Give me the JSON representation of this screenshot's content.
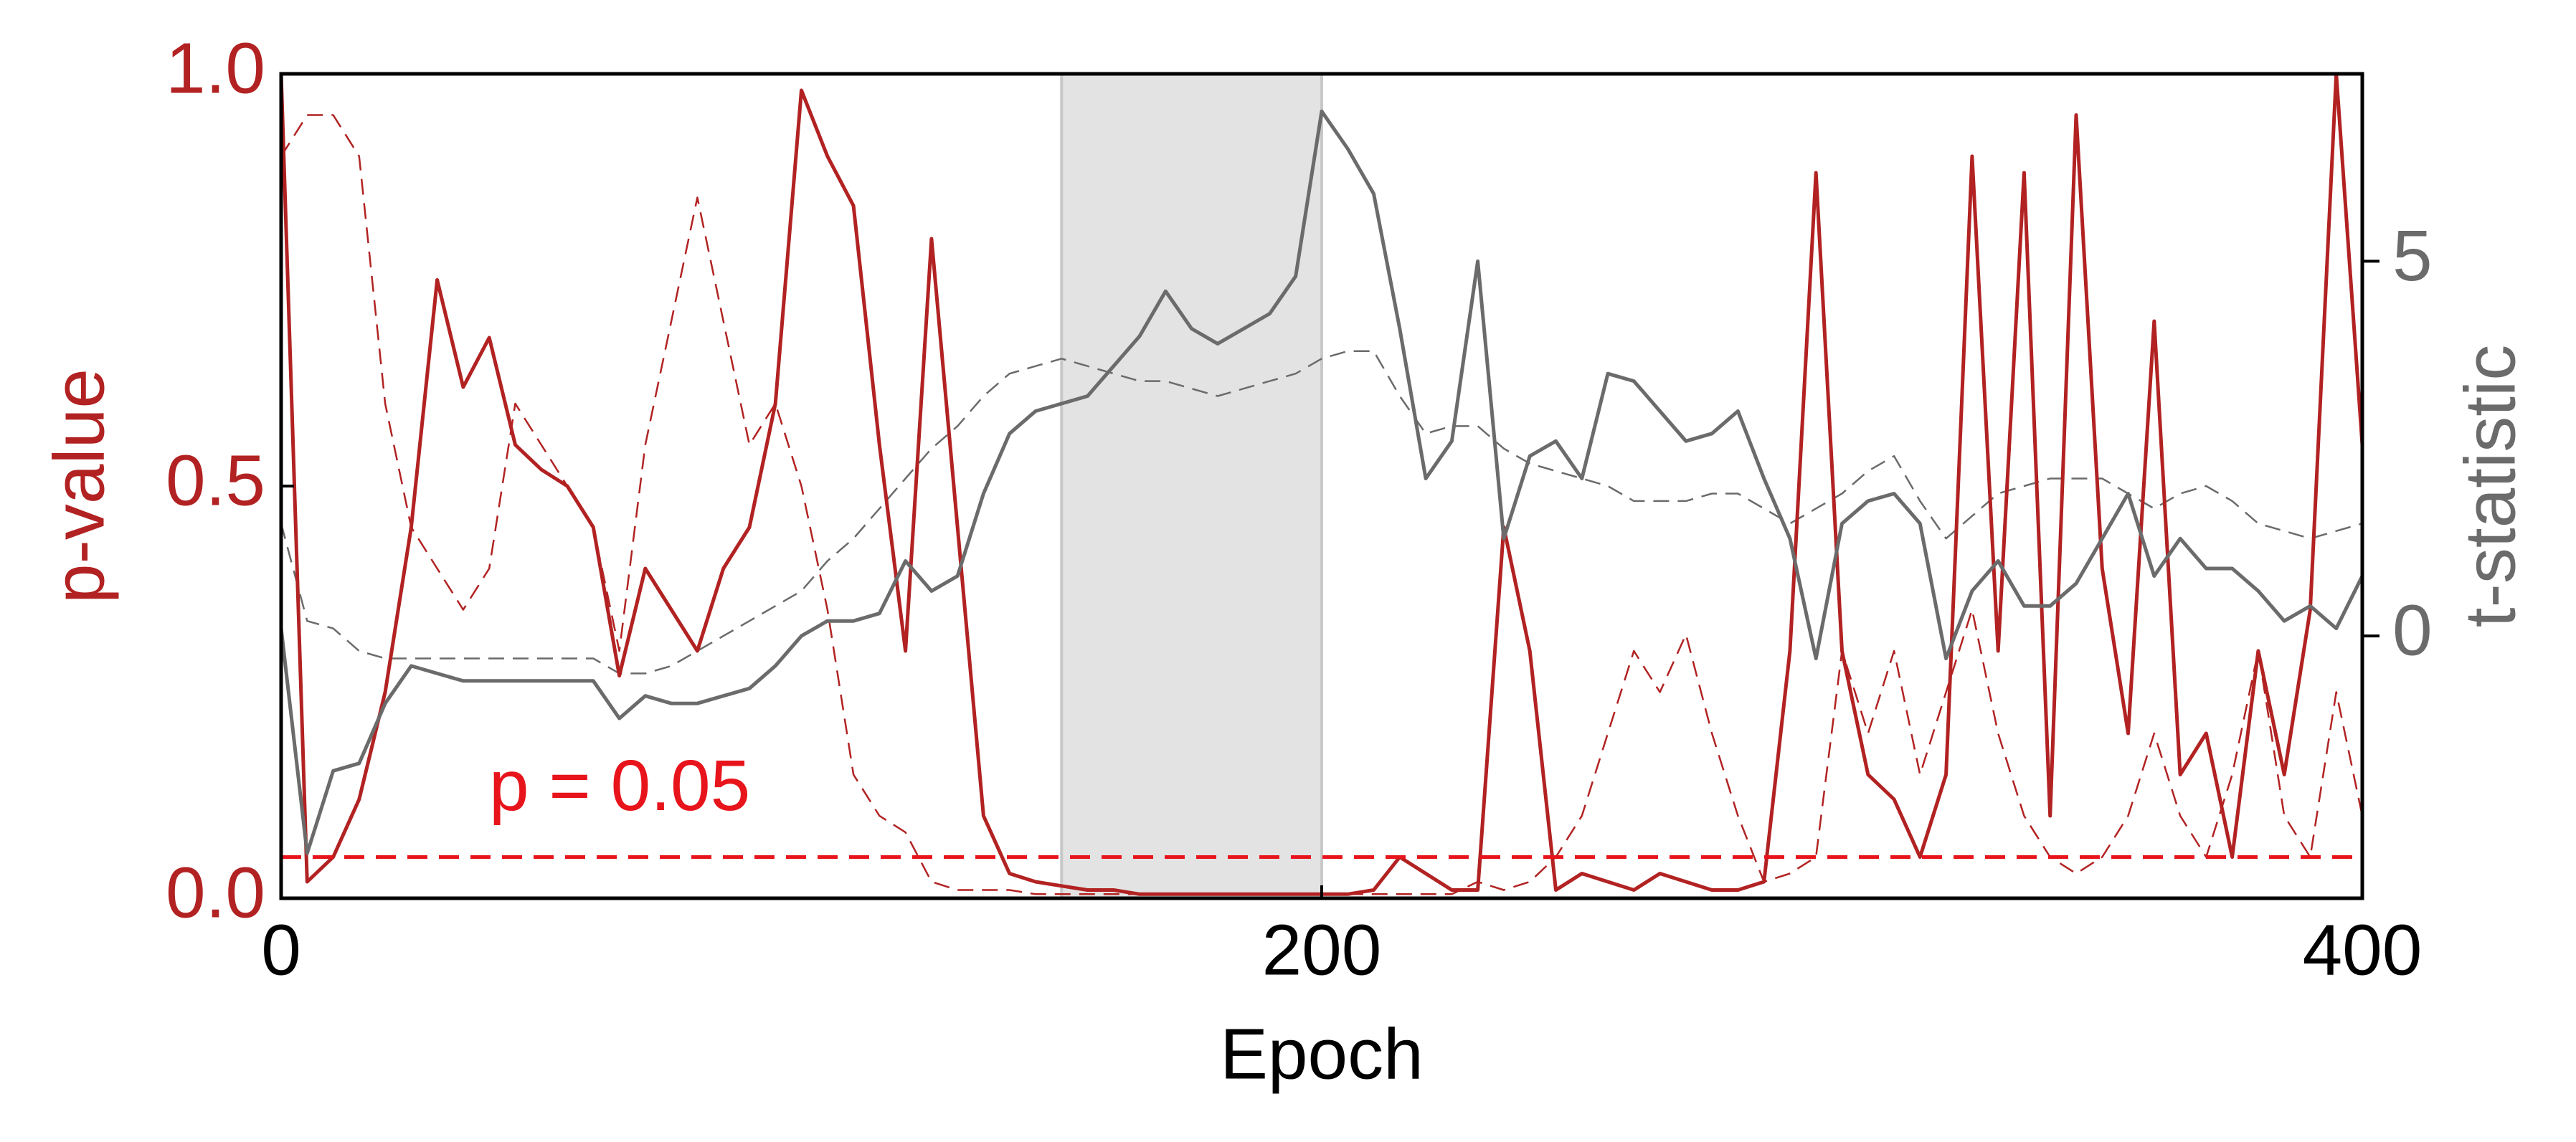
{
  "chart_data": {
    "type": "line",
    "xlabel": "Epoch",
    "ylabel": "p-value",
    "y2label": "t-statistic",
    "annotation": "p = 0.05",
    "xlim": [
      0,
      400
    ],
    "xticks": [
      0,
      200,
      400
    ],
    "ylim": [
      0,
      1
    ],
    "yticks": [
      {
        "value": 0,
        "label": "0.0"
      },
      0.5,
      {
        "value": 1,
        "label": "1.0"
      }
    ],
    "y2lim": [
      -3.5,
      7.5
    ],
    "y2ticks": [
      0,
      5
    ],
    "ycolor": "#b22222",
    "y2color": "#6b6b6b",
    "span": [
      150,
      200
    ],
    "span_color": "#e3e3e3",
    "hline": {
      "value": 0.05,
      "color": "#e8141c"
    },
    "x": [
      0,
      5,
      10,
      15,
      20,
      25,
      30,
      35,
      40,
      45,
      50,
      55,
      60,
      65,
      70,
      75,
      80,
      85,
      90,
      95,
      100,
      105,
      110,
      115,
      120,
      125,
      130,
      135,
      140,
      145,
      150,
      155,
      160,
      165,
      170,
      175,
      180,
      185,
      190,
      195,
      200,
      205,
      210,
      215,
      220,
      225,
      230,
      235,
      240,
      245,
      250,
      255,
      260,
      265,
      270,
      275,
      280,
      285,
      290,
      295,
      300,
      305,
      310,
      315,
      320,
      325,
      330,
      335,
      340,
      345,
      350,
      355,
      360,
      365,
      370,
      375,
      380,
      385,
      390,
      395,
      400
    ],
    "series": [
      {
        "color": "#b22222",
        "dashed": true,
        "axis": "y",
        "values": [
          0.9,
          0.95,
          0.95,
          0.9,
          0.6,
          0.45,
          0.4,
          0.35,
          0.4,
          0.6,
          0.55,
          0.5,
          0.45,
          0.3,
          0.55,
          0.7,
          0.85,
          0.7,
          0.55,
          0.6,
          0.5,
          0.35,
          0.15,
          0.1,
          0.08,
          0.02,
          0.01,
          0.01,
          0.01,
          0.005,
          0.005,
          0.005,
          0.005,
          0.005,
          0.005,
          0.005,
          0.005,
          0.005,
          0.005,
          0.005,
          0.005,
          0.005,
          0.005,
          0.005,
          0.005,
          0.005,
          0.02,
          0.01,
          0.02,
          0.05,
          0.1,
          0.2,
          0.3,
          0.25,
          0.32,
          0.2,
          0.1,
          0.02,
          0.03,
          0.05,
          0.3,
          0.2,
          0.3,
          0.15,
          0.25,
          0.35,
          0.2,
          0.1,
          0.05,
          0.03,
          0.05,
          0.1,
          0.2,
          0.1,
          0.05,
          0.15,
          0.3,
          0.1,
          0.05,
          0.25,
          0.1
        ]
      },
      {
        "color": "#6b6b6b",
        "dashed": true,
        "axis": "y2",
        "values": [
          1.5,
          0.2,
          0.1,
          -0.2,
          -0.3,
          -0.3,
          -0.3,
          -0.3,
          -0.3,
          -0.3,
          -0.3,
          -0.3,
          -0.3,
          -0.5,
          -0.5,
          -0.4,
          -0.2,
          0,
          0.2,
          0.4,
          0.6,
          1.0,
          1.3,
          1.7,
          2.1,
          2.5,
          2.8,
          3.2,
          3.5,
          3.6,
          3.7,
          3.6,
          3.5,
          3.4,
          3.4,
          3.3,
          3.2,
          3.3,
          3.4,
          3.5,
          3.7,
          3.8,
          3.8,
          3.2,
          2.7,
          2.8,
          2.8,
          2.5,
          2.3,
          2.2,
          2.1,
          2.0,
          1.8,
          1.8,
          1.8,
          1.9,
          1.9,
          1.7,
          1.5,
          1.7,
          1.9,
          2.2,
          2.4,
          1.8,
          1.3,
          1.6,
          1.9,
          2.0,
          2.1,
          2.1,
          2.1,
          1.9,
          1.7,
          1.9,
          2.0,
          1.8,
          1.5,
          1.4,
          1.3,
          1.4,
          1.5
        ]
      },
      {
        "color": "#b22222",
        "dashed": false,
        "axis": "y",
        "values": [
          1.0,
          0.02,
          0.05,
          0.12,
          0.25,
          0.45,
          0.75,
          0.62,
          0.68,
          0.55,
          0.52,
          0.5,
          0.45,
          0.27,
          0.4,
          0.35,
          0.3,
          0.4,
          0.45,
          0.6,
          0.98,
          0.9,
          0.84,
          0.55,
          0.3,
          0.8,
          0.45,
          0.1,
          0.03,
          0.02,
          0.015,
          0.01,
          0.01,
          0.005,
          0.005,
          0.005,
          0.005,
          0.005,
          0.005,
          0.005,
          0.005,
          0.005,
          0.01,
          0.05,
          0.03,
          0.01,
          0.01,
          0.45,
          0.3,
          0.01,
          0.03,
          0.02,
          0.01,
          0.03,
          0.02,
          0.01,
          0.01,
          0.02,
          0.3,
          0.88,
          0.3,
          0.15,
          0.12,
          0.05,
          0.15,
          0.9,
          0.3,
          0.88,
          0.1,
          0.95,
          0.4,
          0.2,
          0.7,
          0.15,
          0.2,
          0.05,
          0.3,
          0.15,
          0.35,
          1.0,
          0.55
        ]
      },
      {
        "color": "#6b6b6b",
        "dashed": false,
        "axis": "y2",
        "values": [
          0.1,
          -2.9,
          -1.8,
          -1.7,
          -0.9,
          -0.4,
          -0.5,
          -0.6,
          -0.6,
          -0.6,
          -0.6,
          -0.6,
          -0.6,
          -1.1,
          -0.8,
          -0.9,
          -0.9,
          -0.8,
          -0.7,
          -0.4,
          0,
          0.2,
          0.2,
          0.3,
          1.0,
          0.6,
          0.8,
          1.9,
          2.7,
          3.0,
          3.1,
          3.2,
          3.6,
          4.0,
          4.6,
          4.1,
          3.9,
          4.1,
          4.3,
          4.8,
          7.0,
          6.5,
          5.9,
          4.1,
          2.1,
          2.6,
          5.0,
          1.3,
          2.4,
          2.6,
          2.1,
          3.5,
          3.4,
          3.0,
          2.6,
          2.7,
          3.0,
          2.1,
          1.3,
          -0.3,
          1.5,
          1.8,
          1.9,
          1.5,
          -0.3,
          0.6,
          1.0,
          0.4,
          0.4,
          0.7,
          1.3,
          1.9,
          0.8,
          1.3,
          0.9,
          0.9,
          0.6,
          0.2,
          0.4,
          0.1,
          0.8
        ]
      }
    ]
  }
}
